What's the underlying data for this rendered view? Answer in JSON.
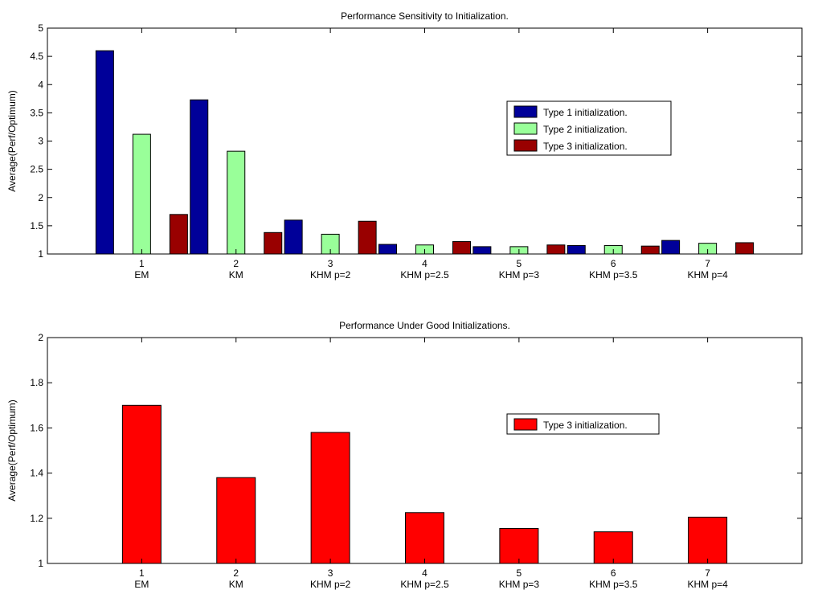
{
  "chart_data": [
    {
      "type": "bar",
      "title": "Performance Sensitivity to Initialization.",
      "ylabel": "Average(Perf/Optimum)",
      "xlabel": "",
      "categories": [
        "1",
        "2",
        "3",
        "4",
        "5",
        "6",
        "7"
      ],
      "category_labels": [
        "EM",
        "KM",
        "KHM p=2",
        "KHM p=2.5",
        "KHM p=3",
        "KHM p=3.5",
        "KHM p=4"
      ],
      "ylim": [
        1,
        5
      ],
      "yticks": [
        1,
        1.5,
        2,
        2.5,
        3,
        3.5,
        4,
        4.5,
        5
      ],
      "ytick_labels": [
        "1",
        "1.5",
        "2",
        "2.5",
        "3",
        "3.5",
        "4",
        "4.5",
        "5"
      ],
      "xlim": [
        0,
        8
      ],
      "legend_position": "right-center",
      "grid": false,
      "series": [
        {
          "name": "Type 1 initialization.",
          "color": "#000099",
          "values": [
            4.6,
            3.73,
            1.6,
            1.17,
            1.13,
            1.15,
            1.24
          ]
        },
        {
          "name": "Type 2 initialization.",
          "color": "#99ff99",
          "values": [
            3.12,
            2.82,
            1.35,
            1.16,
            1.13,
            1.15,
            1.19
          ]
        },
        {
          "name": "Type 3 initialization.",
          "color": "#990000",
          "values": [
            1.7,
            1.38,
            1.58,
            1.22,
            1.16,
            1.14,
            1.2
          ]
        }
      ]
    },
    {
      "type": "bar",
      "title": "Performance Under Good Initializations.",
      "ylabel": "Average(Perf/Optimum)",
      "xlabel": "",
      "categories": [
        "1",
        "2",
        "3",
        "4",
        "5",
        "6",
        "7"
      ],
      "category_labels": [
        "EM",
        "KM",
        "KHM p=2",
        "KHM p=2.5",
        "KHM p=3",
        "KHM p=3.5",
        "KHM p=4"
      ],
      "ylim": [
        1,
        2
      ],
      "yticks": [
        1,
        1.2,
        1.4,
        1.6,
        1.8,
        2
      ],
      "ytick_labels": [
        "1",
        "1.2",
        "1.4",
        "1.6",
        "1.8",
        "2"
      ],
      "xlim": [
        0,
        8
      ],
      "legend_position": "right-center",
      "grid": false,
      "series": [
        {
          "name": "Type 3 initialization.",
          "color": "#ff0000",
          "values": [
            1.7,
            1.38,
            1.58,
            1.225,
            1.155,
            1.14,
            1.205
          ]
        }
      ]
    }
  ]
}
